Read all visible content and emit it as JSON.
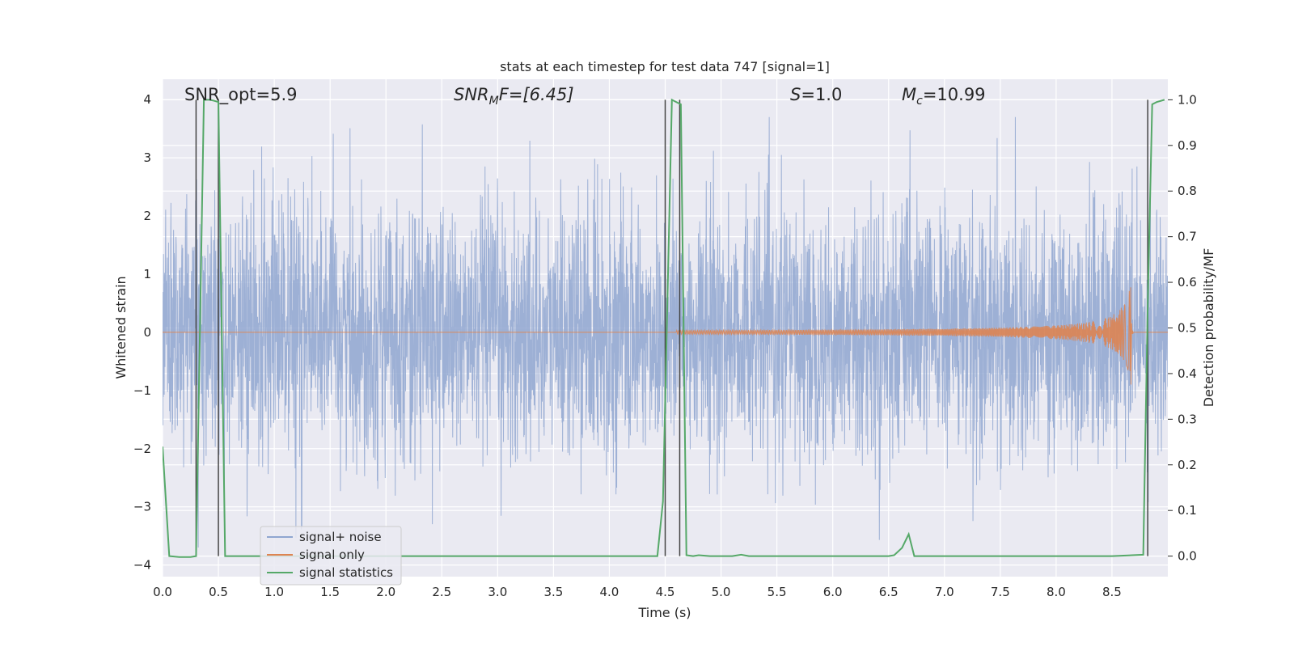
{
  "chart_data": {
    "type": "line",
    "title": "stats at each timestep for test data 747 [signal=1]",
    "xlabel": "Time (s)",
    "ylabel_left": "Whitened strain",
    "ylabel_right": "Detection probability/MF",
    "xlim": [
      0.0,
      9.0
    ],
    "ylim_left": [
      -4.2,
      4.35
    ],
    "ylim_right": [
      -0.045,
      1.045
    ],
    "x_ticks": [
      "0.0",
      "0.5",
      "1.0",
      "1.5",
      "2.0",
      "2.5",
      "3.0",
      "3.5",
      "4.0",
      "4.5",
      "5.0",
      "5.5",
      "6.0",
      "6.5",
      "7.0",
      "7.5",
      "8.0",
      "8.5"
    ],
    "y_ticks_left": [
      "−4",
      "−3",
      "−2",
      "−1",
      "0",
      "1",
      "2",
      "3",
      "4"
    ],
    "y_ticks_right": [
      "0.0",
      "0.1",
      "0.2",
      "0.3",
      "0.4",
      "0.5",
      "0.6",
      "0.7",
      "0.8",
      "0.9",
      "1.0"
    ],
    "grid": true,
    "legend_location": "lower-left",
    "annotations": {
      "snr_opt": "SNR_opt=5.9",
      "snr_mf": "SNR",
      "snr_mf_sub": "M",
      "snr_mf_rest": "F=[6.45]",
      "s_stat": "S",
      "s_rest": "=1.0",
      "mc": "M",
      "mc_sub": "c",
      "mc_rest": "=10.99"
    },
    "series": [
      {
        "name": "signal+ noise",
        "color": "#8fa6d0",
        "description_values": "whitened noise, approx. Gaussian, std ~1, peaks reaching about ±3.7"
      },
      {
        "name": "signal only",
        "color": "#dd8452",
        "chirp_start": 4.6,
        "chirp_merger": 8.67,
        "peak_amplitude": 0.9
      },
      {
        "name": "signal statistics",
        "color": "#55a868",
        "x": [
          0.0,
          0.06,
          0.15,
          0.25,
          0.3,
          0.37,
          0.42,
          0.46,
          0.5,
          0.56,
          0.6,
          1.0,
          2.0,
          3.0,
          4.0,
          4.43,
          4.48,
          4.56,
          4.6,
          4.64,
          4.69,
          4.75,
          4.8,
          4.9,
          5.0,
          5.1,
          5.18,
          5.25,
          5.5,
          6.0,
          6.5,
          6.55,
          6.62,
          6.68,
          6.73,
          6.8,
          7.0,
          7.5,
          8.0,
          8.5,
          8.78,
          8.82,
          8.86,
          8.9,
          8.97
        ],
        "y": [
          0.24,
          0.0,
          -0.002,
          -0.002,
          0.0,
          1.0,
          1.0,
          0.998,
          0.995,
          0.0,
          0.0,
          0.0,
          0.0,
          0.0,
          0.0,
          0.0,
          0.12,
          1.0,
          0.995,
          0.99,
          0.002,
          0.0,
          0.002,
          0.0,
          0.0,
          0.0,
          0.003,
          0.0,
          0.0,
          0.0,
          0.0,
          0.002,
          0.018,
          0.048,
          0.0,
          0.0,
          0.0,
          0.0,
          0.0,
          0.0,
          0.003,
          0.55,
          0.99,
          0.995,
          1.0
        ]
      }
    ],
    "vertical_markers_x": [
      0.3,
      0.5,
      4.5,
      4.63,
      8.82
    ]
  }
}
